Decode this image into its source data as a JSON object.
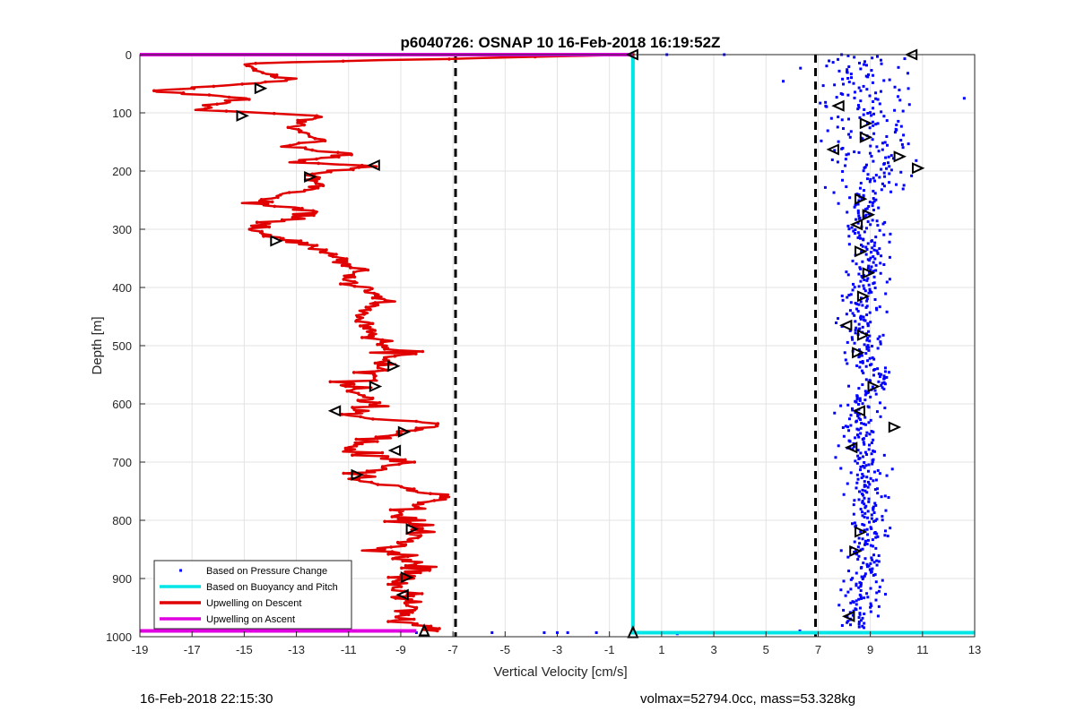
{
  "chart_data": {
    "type": "scatter",
    "title": "p6040726: OSNAP 10 16-Feb-2018 16:19:52Z",
    "xlabel": "Vertical Velocity [cm/s]",
    "ylabel": "Depth [m]",
    "xlim": [
      -19,
      13
    ],
    "ylim": [
      1000,
      0
    ],
    "x_ticks": [
      "-19",
      "-17",
      "-15",
      "-13",
      "-11",
      "-9",
      "-7",
      "-5",
      "-3",
      "-1",
      "1",
      "3",
      "5",
      "7",
      "9",
      "11",
      "13"
    ],
    "y_ticks": [
      "0",
      "100",
      "200",
      "300",
      "400",
      "500",
      "600",
      "700",
      "800",
      "900",
      "1000"
    ],
    "grid": true,
    "legend_position": "bottom-left",
    "threshold_lines": [
      -6.9,
      6.9
    ],
    "series": [
      {
        "name": "Based on Pressure Change",
        "kind": "scatter",
        "color": "#0000ff",
        "descent_cluster": {
          "center_profile": [
            [
              20,
              8.3
            ],
            [
              100,
              8.8
            ],
            [
              200,
              9.3
            ],
            [
              250,
              8.6
            ],
            [
              300,
              8.9
            ],
            [
              400,
              8.8
            ],
            [
              500,
              8.6
            ],
            [
              560,
              9.3
            ],
            [
              600,
              8.6
            ],
            [
              700,
              8.7
            ],
            [
              800,
              9.0
            ],
            [
              900,
              8.7
            ],
            [
              980,
              8.5
            ]
          ]
        },
        "surface_points": [
          [
            1.2,
            0
          ],
          [
            3.4,
            0
          ],
          [
            7.9,
            0
          ]
        ],
        "bottom_points": [
          [
            -8.4,
            993
          ],
          [
            -5.5,
            993
          ],
          [
            -3.5,
            993
          ],
          [
            -3.0,
            993
          ],
          [
            -2.6,
            993
          ],
          [
            -1.5,
            993
          ],
          [
            1.6,
            995
          ],
          [
            4.0,
            993
          ],
          [
            4.5,
            993
          ],
          [
            4.9,
            993
          ],
          [
            6.3,
            990
          ],
          [
            12.6,
            75
          ]
        ]
      },
      {
        "name": "Based on Buoyancy and Pitch",
        "kind": "line",
        "color": "#00e5e5",
        "points": [
          [
            -19,
            0
          ],
          [
            -0.1,
            0
          ],
          [
            -0.1,
            993
          ],
          [
            13,
            993
          ]
        ]
      },
      {
        "name": "Upwelling on Descent",
        "kind": "line",
        "color": "#e00000",
        "points": [
          [
            -0.1,
            0
          ],
          [
            -15.1,
            15
          ],
          [
            -13.2,
            45
          ],
          [
            -18.6,
            62
          ],
          [
            -15.1,
            75
          ],
          [
            -16.6,
            95
          ],
          [
            -12.2,
            105
          ],
          [
            -13.1,
            125
          ],
          [
            -12.1,
            148
          ],
          [
            -13.6,
            158
          ],
          [
            -11.1,
            170
          ],
          [
            -13.2,
            185
          ],
          [
            -10.1,
            192
          ],
          [
            -12.6,
            205
          ],
          [
            -12.1,
            225
          ],
          [
            -14.6,
            255
          ],
          [
            -12.1,
            270
          ],
          [
            -14.9,
            300
          ],
          [
            -13.1,
            320
          ],
          [
            -11.6,
            345
          ],
          [
            -10.6,
            370
          ],
          [
            -11.1,
            390
          ],
          [
            -9.6,
            420
          ],
          [
            -10.6,
            450
          ],
          [
            -10.1,
            480
          ],
          [
            -9.1,
            510
          ],
          [
            -9.6,
            540
          ],
          [
            -11.1,
            570
          ],
          [
            -10.1,
            600
          ],
          [
            -11.1,
            620
          ],
          [
            -7.2,
            636
          ],
          [
            -9.6,
            655
          ],
          [
            -11.1,
            680
          ],
          [
            -8.6,
            700
          ],
          [
            -11.1,
            725
          ],
          [
            -7.3,
            758
          ],
          [
            -9.1,
            790
          ],
          [
            -8.1,
            820
          ],
          [
            -9.6,
            850
          ],
          [
            -8.1,
            880
          ],
          [
            -9.6,
            910
          ],
          [
            -8.6,
            940
          ],
          [
            -9.1,
            970
          ],
          [
            -7.6,
            990
          ]
        ]
      },
      {
        "name": "Upwelling on Ascent",
        "kind": "line",
        "color": "#e000e0",
        "points": [
          [
            -19,
            0
          ],
          [
            -0.1,
            0
          ],
          [
            -19,
            990
          ],
          [
            -8.4,
            990
          ]
        ]
      }
    ],
    "triangle_markers": [
      {
        "x": 10.6,
        "y": 0,
        "dir": "left"
      },
      {
        "x": -14.4,
        "y": 58,
        "dir": "right"
      },
      {
        "x": -15.1,
        "y": 105,
        "dir": "right"
      },
      {
        "x": 7.8,
        "y": 88,
        "dir": "left"
      },
      {
        "x": 8.8,
        "y": 118,
        "dir": "right"
      },
      {
        "x": 8.8,
        "y": 142,
        "dir": "right"
      },
      {
        "x": 7.6,
        "y": 163,
        "dir": "left"
      },
      {
        "x": 10.1,
        "y": 175,
        "dir": "right"
      },
      {
        "x": 10.8,
        "y": 195,
        "dir": "right"
      },
      {
        "x": -10.0,
        "y": 190,
        "dir": "left"
      },
      {
        "x": -12.5,
        "y": 210,
        "dir": "right"
      },
      {
        "x": 8.6,
        "y": 248,
        "dir": "right"
      },
      {
        "x": 8.9,
        "y": 275,
        "dir": "right"
      },
      {
        "x": 8.5,
        "y": 292,
        "dir": "left"
      },
      {
        "x": -13.8,
        "y": 320,
        "dir": "right"
      },
      {
        "x": 8.6,
        "y": 338,
        "dir": "right"
      },
      {
        "x": 8.9,
        "y": 375,
        "dir": "right"
      },
      {
        "x": 8.7,
        "y": 415,
        "dir": "right"
      },
      {
        "x": 8.1,
        "y": 465,
        "dir": "left"
      },
      {
        "x": 8.7,
        "y": 482,
        "dir": "right"
      },
      {
        "x": 8.5,
        "y": 512,
        "dir": "right"
      },
      {
        "x": -9.3,
        "y": 535,
        "dir": "right"
      },
      {
        "x": -10.0,
        "y": 570,
        "dir": "right"
      },
      {
        "x": 9.1,
        "y": 570,
        "dir": "right"
      },
      {
        "x": -11.5,
        "y": 612,
        "dir": "left"
      },
      {
        "x": 8.6,
        "y": 612,
        "dir": "left"
      },
      {
        "x": -8.9,
        "y": 648,
        "dir": "right"
      },
      {
        "x": 9.9,
        "y": 640,
        "dir": "right"
      },
      {
        "x": -9.2,
        "y": 680,
        "dir": "left"
      },
      {
        "x": 8.3,
        "y": 675,
        "dir": "left"
      },
      {
        "x": -10.7,
        "y": 722,
        "dir": "right"
      },
      {
        "x": -8.6,
        "y": 815,
        "dir": "right"
      },
      {
        "x": 8.6,
        "y": 820,
        "dir": "right"
      },
      {
        "x": 8.4,
        "y": 853,
        "dir": "right"
      },
      {
        "x": -8.8,
        "y": 898,
        "dir": "right"
      },
      {
        "x": -8.9,
        "y": 928,
        "dir": "left"
      },
      {
        "x": 8.2,
        "y": 965,
        "dir": "left"
      },
      {
        "x": -8.1,
        "y": 990,
        "dir": "up"
      },
      {
        "x": -0.1,
        "y": 993,
        "dir": "up"
      },
      {
        "x": -0.1,
        "y": 0,
        "dir": "left"
      }
    ]
  },
  "footer": {
    "left": "16-Feb-2018 22:15:30",
    "right": "volmax=52794.0cc, mass=53.328kg"
  },
  "colors": {
    "threshold": "#000000",
    "grid": "#e3e3e3",
    "triangle_edge": "#000000"
  }
}
